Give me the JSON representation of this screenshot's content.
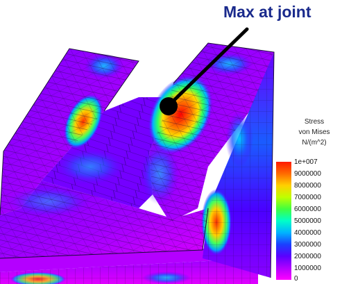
{
  "annotation": {
    "text": "Max at joint"
  },
  "legend": {
    "title_lines": [
      "Stress",
      "von Mises",
      "N/(m^2)"
    ],
    "ticks": [
      "1e+007",
      "9000000",
      "8000000",
      "7000000",
      "6000000",
      "5000000",
      "4000000",
      "3000000",
      "2000000",
      "1000000",
      "0"
    ],
    "colors": [
      "#ff1a00",
      "#ff6a00",
      "#ffd000",
      "#bfff00",
      "#40ff40",
      "#00ffc8",
      "#00b4ff",
      "#1a40ff",
      "#5a00ff",
      "#b000ff",
      "#ff00ff"
    ]
  }
}
